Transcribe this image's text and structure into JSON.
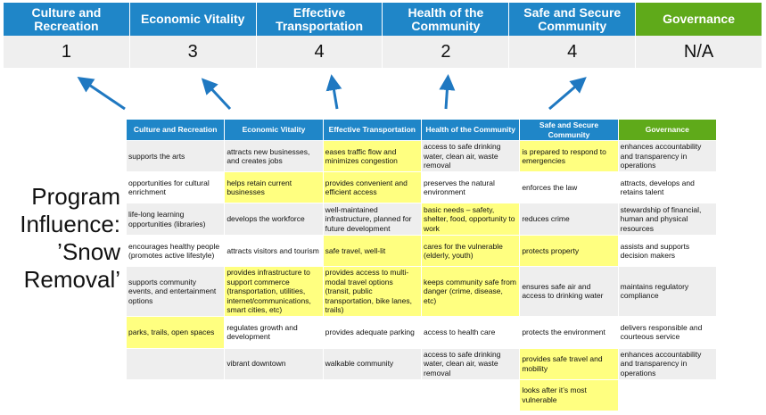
{
  "categories": [
    {
      "label": "Culture and Recreation",
      "score": "1",
      "color": "#1f86c8"
    },
    {
      "label": "Economic Vitality",
      "score": "3",
      "color": "#1f86c8"
    },
    {
      "label": "Effective Transportation",
      "score": "4",
      "color": "#1f86c8"
    },
    {
      "label": "Health of the Community",
      "score": "2",
      "color": "#1f86c8"
    },
    {
      "label": "Safe and Secure Community",
      "score": "4",
      "color": "#1f86c8"
    },
    {
      "label": "Governance",
      "score": "N/A",
      "color": "#5faa1a"
    }
  ],
  "program_title": "Program Influence: ’Snow Removal’",
  "highlight_color": "#ffff80",
  "table": {
    "headers": [
      "Culture and Recreation",
      "Economic Vitality",
      "Effective Transportation",
      "Health of the Community",
      "Safe and Secure Community",
      "Governance"
    ],
    "rows": [
      [
        {
          "t": "supports the arts"
        },
        {
          "t": "attracts new businesses, and creates jobs"
        },
        {
          "t": "eases traffic flow and minimizes congestion",
          "h": true
        },
        {
          "t": "access to safe drinking water, clean air, waste removal"
        },
        {
          "t": "is prepared to respond to emergencies",
          "h": true
        },
        {
          "t": "enhances accountability and transparency in operations"
        }
      ],
      [
        {
          "t": "opportunities for cultural enrichment"
        },
        {
          "t": "helps retain current businesses",
          "h": true
        },
        {
          "t": "provides convenient and efficient access",
          "h": true
        },
        {
          "t": "preserves the natural environment"
        },
        {
          "t": "enforces the law"
        },
        {
          "t": "attracts, develops and retains talent"
        }
      ],
      [
        {
          "t": "life-long learning opportunities (libraries)"
        },
        {
          "t": "develops the workforce"
        },
        {
          "t": "well-maintained infrastructure, planned for future development"
        },
        {
          "t": "basic needs – safety, shelter, food, opportunity to work",
          "h": true
        },
        {
          "t": "reduces crime"
        },
        {
          "t": "stewardship of financial, human and physical resources"
        }
      ],
      [
        {
          "t": "encourages healthy people (promotes active lifestyle)"
        },
        {
          "t": "attracts visitors and tourism"
        },
        {
          "t": "safe travel, well-lit",
          "h": true
        },
        {
          "t": "cares for the vulnerable (elderly, youth)",
          "h": true
        },
        {
          "t": "protects property",
          "h": true
        },
        {
          "t": "assists and supports decision makers"
        }
      ],
      [
        {
          "t": "supports community events, and entertainment options"
        },
        {
          "t": "provides infrastructure to support commerce (transportation, utilities, internet/communications, smart cities, etc)",
          "h": true
        },
        {
          "t": "provides access to multi-modal travel options (transit, public transportation, bike lanes, trails)",
          "h": true
        },
        {
          "t": "keeps community safe from danger (crime, disease, etc)",
          "h": true
        },
        {
          "t": "ensures safe air and access to drinking water"
        },
        {
          "t": "maintains regulatory compliance"
        }
      ],
      [
        {
          "t": "parks, trails, open spaces",
          "h": true
        },
        {
          "t": "regulates growth and development"
        },
        {
          "t": "provides adequate parking"
        },
        {
          "t": "access to health care"
        },
        {
          "t": "protects the environment"
        },
        {
          "t": "delivers responsible and courteous service"
        }
      ],
      [
        {
          "t": ""
        },
        {
          "t": "vibrant downtown"
        },
        {
          "t": "walkable community"
        },
        {
          "t": "access to safe drinking water, clean air, waste removal"
        },
        {
          "t": "provides safe travel and mobility",
          "h": true
        },
        {
          "t": "enhances accountability and transparency in operations"
        }
      ],
      [
        {
          "t": ""
        },
        {
          "t": ""
        },
        {
          "t": ""
        },
        {
          "t": ""
        },
        {
          "t": "looks after it’s most vulnerable",
          "h": true
        },
        {
          "t": ""
        }
      ]
    ]
  }
}
